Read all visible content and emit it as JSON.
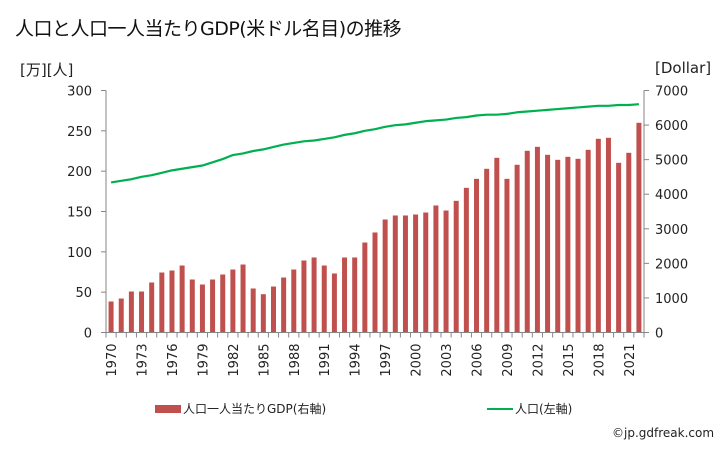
{
  "chart_data": {
    "type": "bar+line",
    "title": "人口と人口一人当たりGDP(米ドル名目)の推移",
    "left_axis": {
      "unit_label": "[万][人]",
      "range": [
        0,
        300
      ],
      "ticks": [
        0,
        50,
        100,
        150,
        200,
        250,
        300
      ]
    },
    "right_axis": {
      "unit_label": "[Dollar]",
      "range": [
        0,
        7000
      ],
      "ticks": [
        0,
        1000,
        2000,
        3000,
        4000,
        5000,
        6000,
        7000
      ]
    },
    "x_tick_labels": [
      "1970",
      "1973",
      "1976",
      "1979",
      "1982",
      "1985",
      "1988",
      "1991",
      "1994",
      "1997",
      "2000",
      "2003",
      "2006",
      "2009",
      "2012",
      "2015",
      "2018",
      "2021"
    ],
    "categories": [
      1970,
      1971,
      1972,
      1973,
      1974,
      1975,
      1976,
      1977,
      1978,
      1979,
      1980,
      1981,
      1982,
      1983,
      1984,
      1985,
      1986,
      1987,
      1988,
      1989,
      1990,
      1991,
      1992,
      1993,
      1994,
      1995,
      1996,
      1997,
      1998,
      1999,
      2000,
      2001,
      2002,
      2003,
      2004,
      2005,
      2006,
      2007,
      2008,
      2009,
      2010,
      2011,
      2012,
      2013,
      2014,
      2015,
      2016,
      2017,
      2018,
      2019,
      2020,
      2021,
      2022
    ],
    "series": [
      {
        "name": "人口一人当たりGDP(右軸)",
        "type": "bar",
        "axis": "right",
        "color": "#c0504d",
        "values": [
          897,
          983,
          1186,
          1186,
          1446,
          1735,
          1793,
          1938,
          1533,
          1388,
          1533,
          1678,
          1822,
          1967,
          1273,
          1108,
          1330,
          1591,
          1822,
          2083,
          2170,
          1938,
          1707,
          2170,
          2170,
          2603,
          2893,
          3269,
          3385,
          3385,
          3413,
          3471,
          3674,
          3529,
          3809,
          4185,
          4445,
          4735,
          5053,
          4445,
          4851,
          5256,
          5371,
          5140,
          4995,
          5082,
          5024,
          5284,
          5603,
          5632,
          4908,
          5198,
          6066
        ]
      },
      {
        "name": "人口(左軸)",
        "type": "line",
        "axis": "left",
        "color": "#00b050",
        "values": [
          186,
          188,
          190,
          193,
          195,
          198,
          201,
          203,
          205,
          207,
          211,
          215,
          220,
          222,
          225,
          227,
          230,
          233,
          235,
          237,
          238,
          240,
          242,
          245,
          247,
          250,
          252,
          255,
          257,
          258,
          260,
          262,
          263,
          264,
          266,
          267,
          269,
          270,
          270,
          271,
          273,
          274,
          275,
          276,
          277,
          278,
          279,
          280,
          281,
          281,
          282,
          282,
          283
        ]
      }
    ],
    "legend_position": "bottom"
  },
  "footer": {
    "copyright": "©jp.gdfreak.com"
  }
}
